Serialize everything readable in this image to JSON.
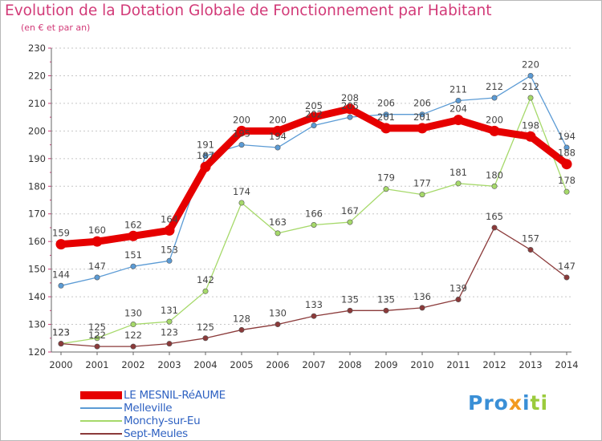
{
  "title": "Evolution de la Dotation Globale de Fonctionnement par Habitant",
  "subtitle": "(en € et par an)",
  "logo": {
    "parts": [
      {
        "text": "Pro",
        "color": "#3a8fd6"
      },
      {
        "text": "x",
        "color": "#f29a1f"
      },
      {
        "text": "i",
        "color": "#3a8fd6"
      },
      {
        "text": "ti",
        "color": "#9bcb3c"
      }
    ]
  },
  "chart_data": {
    "type": "line",
    "title": "Evolution de la Dotation Globale de Fonctionnement par Habitant",
    "subtitle": "(en € et par an)",
    "xlabel": "",
    "ylabel": "",
    "ylim": [
      120,
      230
    ],
    "yticks": [
      120,
      130,
      140,
      150,
      160,
      170,
      180,
      190,
      200,
      210,
      220,
      230
    ],
    "grid": true,
    "legend_position": "bottom-left",
    "categories": [
      "2000",
      "2001",
      "2002",
      "2003",
      "2004",
      "2005",
      "2006",
      "2007",
      "2008",
      "2009",
      "2010",
      "2011",
      "2012",
      "2013",
      "2014"
    ],
    "series": [
      {
        "name": "Melleville",
        "color": "#5b9bd5",
        "values": [
          144,
          147,
          151,
          153,
          191,
          195,
          194,
          202,
          205,
          206,
          206,
          211,
          212,
          220,
          194
        ]
      },
      {
        "name": "Monchy-sur-Eu",
        "color": "#a6d96a",
        "values": [
          123,
          125,
          130,
          131,
          142,
          174,
          163,
          166,
          167,
          179,
          177,
          181,
          180,
          212,
          178
        ]
      },
      {
        "name": "Sept-Meules",
        "color": "#8b3a3a",
        "values": [
          123,
          122,
          122,
          123,
          125,
          128,
          130,
          133,
          135,
          135,
          136,
          139,
          165,
          157,
          147
        ]
      },
      {
        "name": "LE MESNIL-RéAUME",
        "color": "#e60000",
        "values": [
          159,
          160,
          162,
          164,
          187,
          200,
          200,
          205,
          208,
          201,
          201,
          204,
          200,
          198,
          188
        ]
      }
    ]
  }
}
